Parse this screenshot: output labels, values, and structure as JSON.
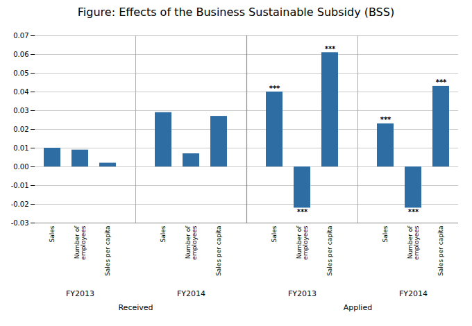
{
  "chart_data": {
    "type": "bar",
    "title": "Figure: Effects of the Business Sustainable Subsidy (BSS)",
    "categories": [
      "Sales",
      "Number of\nemployees",
      "Sales per capita"
    ],
    "groups": [
      {
        "label": "FY2013",
        "parent": "Received",
        "values": [
          0.01,
          0.009,
          0.002
        ],
        "annotations": [
          null,
          null,
          null
        ]
      },
      {
        "label": "FY2014",
        "parent": "Received",
        "values": [
          0.029,
          0.007,
          0.027
        ],
        "annotations": [
          null,
          null,
          null
        ]
      },
      {
        "label": "FY2013",
        "parent": "Applied",
        "values": [
          0.04,
          -0.022,
          0.061
        ],
        "annotations": [
          "***",
          "***",
          "***"
        ]
      },
      {
        "label": "FY2014",
        "parent": "Applied",
        "values": [
          0.023,
          -0.022,
          0.043
        ],
        "annotations": [
          "***",
          "***",
          "***"
        ]
      }
    ],
    "color": "#2e6da4",
    "ylim": [
      -0.03,
      0.07
    ],
    "yticks": [
      -0.03,
      -0.02,
      -0.01,
      {
        "value": 0,
        "label": "0.00"
      },
      0.01,
      0.02,
      0.03,
      0.04,
      0.05,
      0.06,
      0.07
    ],
    "grid": true
  }
}
